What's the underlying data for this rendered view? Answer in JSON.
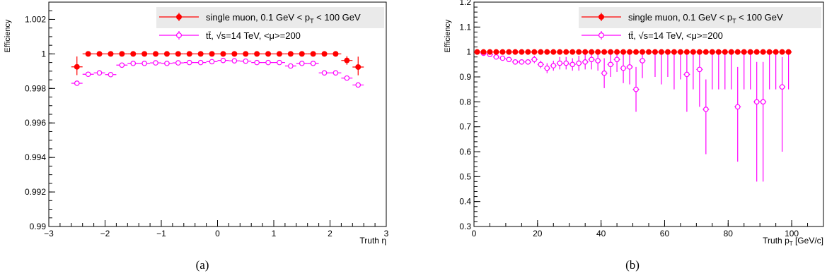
{
  "chart_data": [
    {
      "type": "scatter",
      "caption": "(a)",
      "xlabel": "Truth η",
      "ylabel": "Efficiency",
      "xlim": [
        -3,
        3
      ],
      "ylim": [
        0.99,
        1.003
      ],
      "xticks": [
        "−3",
        "−2",
        "−1",
        "0",
        "1",
        "2",
        "3"
      ],
      "yticks": [
        "0.99",
        "0.992",
        "0.994",
        "0.996",
        "0.998",
        "1",
        "1.002"
      ],
      "legend": {
        "placement": "top-right",
        "entries": [
          {
            "text": "single muon, 0.1 GeV < p",
            "sub": "T",
            "tail": " < 100 GeV",
            "color": "#ff0000",
            "marker": "filled-circle"
          },
          {
            "text": "tt̄, √s=14 TeV, <μ>=200",
            "color": "#ff00ff",
            "marker": "open-circle"
          }
        ]
      },
      "series": [
        {
          "name": "single muon, 0.1 GeV < pT < 100 GeV",
          "color": "#ff0000",
          "x": [
            -2.5,
            -2.3,
            -2.1,
            -1.9,
            -1.7,
            -1.5,
            -1.3,
            -1.1,
            -0.9,
            -0.7,
            -0.5,
            -0.3,
            -0.1,
            0.1,
            0.3,
            0.5,
            0.7,
            0.9,
            1.1,
            1.3,
            1.5,
            1.7,
            1.9,
            2.1,
            2.3,
            2.5
          ],
          "xerr": 0.1,
          "y": [
            0.99925,
            1,
            1,
            1,
            1,
            1,
            1,
            1,
            1,
            1,
            1,
            1,
            1,
            1,
            1,
            1,
            1,
            1,
            1,
            1,
            1,
            1,
            1,
            1,
            0.99962,
            0.99924
          ],
          "yerr_lo": [
            0.00048,
            5e-05,
            5e-05,
            5e-05,
            5e-05,
            5e-05,
            5e-05,
            5e-05,
            5e-05,
            5e-05,
            5e-05,
            5e-05,
            5e-05,
            5e-05,
            5e-05,
            5e-05,
            5e-05,
            5e-05,
            5e-05,
            5e-05,
            5e-05,
            5e-05,
            5e-05,
            5e-05,
            0.00025,
            0.00048
          ],
          "yerr_hi": [
            0.0006,
            0,
            0,
            0,
            0,
            0,
            0,
            0,
            0,
            0,
            0,
            0,
            0,
            0,
            0,
            0,
            0,
            0,
            0,
            0,
            0,
            0,
            0,
            0,
            0.00025,
            0.0006
          ]
        },
        {
          "name": "tt̄, √s=14 TeV, <μ>=200",
          "color": "#ff00ff",
          "x": [
            -2.5,
            -2.3,
            -2.1,
            -1.9,
            -1.7,
            -1.5,
            -1.3,
            -1.1,
            -0.9,
            -0.7,
            -0.5,
            -0.3,
            -0.1,
            0.1,
            0.3,
            0.5,
            0.7,
            0.9,
            1.1,
            1.3,
            1.5,
            1.7,
            1.9,
            2.1,
            2.3,
            2.5
          ],
          "xerr": 0.1,
          "y": [
            0.9983,
            0.99882,
            0.9989,
            0.9988,
            0.99935,
            0.99945,
            0.99945,
            0.99948,
            0.99945,
            0.99948,
            0.9995,
            0.9995,
            0.99955,
            0.99962,
            0.9996,
            0.99958,
            0.9995,
            0.9995,
            0.9995,
            0.9993,
            0.99945,
            0.99945,
            0.9989,
            0.9989,
            0.9986,
            0.9982
          ],
          "yerr_lo": [
            0.00012,
            8e-05,
            8e-05,
            8e-05,
            8e-05,
            8e-05,
            8e-05,
            8e-05,
            8e-05,
            8e-05,
            8e-05,
            8e-05,
            8e-05,
            8e-05,
            8e-05,
            8e-05,
            8e-05,
            8e-05,
            8e-05,
            8e-05,
            8e-05,
            8e-05,
            8e-05,
            8e-05,
            8e-05,
            0.00012
          ],
          "yerr_hi": [
            0.00012,
            8e-05,
            8e-05,
            8e-05,
            8e-05,
            8e-05,
            8e-05,
            8e-05,
            8e-05,
            8e-05,
            8e-05,
            8e-05,
            8e-05,
            8e-05,
            8e-05,
            8e-05,
            8e-05,
            8e-05,
            8e-05,
            8e-05,
            8e-05,
            8e-05,
            8e-05,
            8e-05,
            8e-05,
            0.00012
          ]
        }
      ]
    },
    {
      "type": "scatter",
      "caption": "(b)",
      "xlabel": "Truth p",
      "xlabel_sub": "T",
      "xlabel_tail": " [GeV/c]",
      "ylabel": "Efficiency",
      "xlim": [
        0,
        110
      ],
      "ylim": [
        0.3,
        1.2
      ],
      "xticks": [
        "0",
        "20",
        "40",
        "60",
        "80",
        "100"
      ],
      "yticks": [
        "0.3",
        "0.4",
        "0.5",
        "0.6",
        "0.7",
        "0.8",
        "0.9",
        "1",
        "1.1",
        "1.2"
      ],
      "legend": {
        "placement": "top-right",
        "entries": [
          {
            "text": "single muon, 0.1 GeV < p",
            "sub": "T",
            "tail": " < 100 GeV",
            "color": "#ff0000",
            "marker": "filled-circle"
          },
          {
            "text": "tt̄, √s=14 TeV, <μ>=200",
            "color": "#ff00ff",
            "marker": "open-circle"
          }
        ]
      },
      "series": [
        {
          "name": "single muon, 0.1 GeV < pT < 100 GeV",
          "color": "#ff0000",
          "x": [
            1,
            3,
            5,
            7,
            9,
            11,
            13,
            15,
            17,
            19,
            21,
            23,
            25,
            27,
            29,
            31,
            33,
            35,
            37,
            39,
            41,
            43,
            45,
            47,
            49,
            51,
            53,
            55,
            57,
            59,
            61,
            63,
            65,
            67,
            69,
            71,
            73,
            75,
            77,
            79,
            81,
            83,
            85,
            87,
            89,
            91,
            93,
            95,
            97,
            99
          ],
          "xerr": 1,
          "y": [
            1,
            1,
            1,
            1,
            1,
            1,
            1,
            1,
            1,
            1,
            1,
            1,
            1,
            1,
            1,
            1,
            1,
            1,
            1,
            1,
            1,
            1,
            1,
            1,
            1,
            1,
            1,
            1,
            1,
            1,
            1,
            1,
            1,
            1,
            1,
            1,
            1,
            1,
            1,
            1,
            1,
            1,
            1,
            1,
            1,
            1,
            1,
            1,
            1,
            1
          ],
          "yerr_lo": [
            0.003,
            0.003,
            0.003,
            0.003,
            0.003,
            0.003,
            0.003,
            0.003,
            0.003,
            0.003,
            0.003,
            0.003,
            0.003,
            0.003,
            0.003,
            0.003,
            0.003,
            0.003,
            0.003,
            0.003,
            0.003,
            0.003,
            0.003,
            0.003,
            0.003,
            0.003,
            0.003,
            0.003,
            0.003,
            0.003,
            0.003,
            0.003,
            0.003,
            0.003,
            0.003,
            0.003,
            0.003,
            0.003,
            0.003,
            0.003,
            0.003,
            0.003,
            0.003,
            0.003,
            0.003,
            0.003,
            0.003,
            0.003,
            0.003,
            0.003
          ],
          "yerr_hi": [
            0,
            0,
            0,
            0,
            0,
            0,
            0,
            0,
            0,
            0,
            0,
            0,
            0,
            0,
            0,
            0,
            0,
            0,
            0,
            0,
            0,
            0,
            0,
            0,
            0,
            0,
            0,
            0,
            0,
            0,
            0,
            0,
            0,
            0,
            0,
            0,
            0,
            0,
            0,
            0,
            0,
            0,
            0,
            0,
            0,
            0,
            0,
            0,
            0,
            0
          ]
        },
        {
          "name": "tt̄, √s=14 TeV, <μ>=200",
          "color": "#ff00ff",
          "x": [
            3,
            5,
            7,
            9,
            11,
            13,
            15,
            17,
            19,
            21,
            23,
            25,
            27,
            29,
            31,
            33,
            35,
            37,
            39,
            41,
            43,
            45,
            47,
            49,
            51,
            53,
            57,
            59,
            61,
            63,
            65,
            67,
            69,
            71,
            73,
            75,
            77,
            79,
            81,
            83,
            85,
            87,
            89,
            91,
            93,
            95,
            97,
            99
          ],
          "xerr": 1,
          "y": [
            0.995,
            0.99,
            0.98,
            0.975,
            0.97,
            0.96,
            0.96,
            0.96,
            0.97,
            0.95,
            0.935,
            0.945,
            0.955,
            0.955,
            0.95,
            0.955,
            0.96,
            0.97,
            0.965,
            0.915,
            0.95,
            0.97,
            0.935,
            0.94,
            0.85,
            0.965,
            1,
            1,
            1,
            1,
            1,
            0.91,
            1,
            0.93,
            0.77,
            1,
            1,
            1,
            1,
            0.78,
            1,
            1,
            0.8,
            0.8,
            1,
            1,
            0.86,
            1
          ],
          "yerr_lo": [
            0.005,
            0.006,
            0.008,
            0.008,
            0.008,
            0.01,
            0.01,
            0.01,
            0.015,
            0.015,
            0.02,
            0.02,
            0.025,
            0.025,
            0.025,
            0.03,
            0.03,
            0.04,
            0.04,
            0.06,
            0.05,
            0.05,
            0.06,
            0.07,
            0.09,
            0.07,
            0.1,
            0.13,
            0.1,
            0.15,
            0.11,
            0.15,
            0.15,
            0.15,
            0.18,
            0.15,
            0.15,
            0.15,
            0.15,
            0.22,
            0.15,
            0.15,
            0.32,
            0.32,
            0.15,
            0.15,
            0.26,
            0.15
          ],
          "yerr_hi": [
            0.005,
            0.006,
            0.008,
            0.008,
            0.008,
            0.01,
            0.01,
            0.01,
            0.015,
            0.015,
            0.02,
            0.02,
            0.025,
            0.025,
            0.025,
            0.03,
            0.03,
            0.03,
            0.035,
            0.06,
            0.05,
            0.03,
            0.06,
            0.06,
            0.09,
            0.035,
            0,
            0,
            0,
            0,
            0,
            0.09,
            0,
            0.07,
            0.12,
            0,
            0,
            0,
            0,
            0.16,
            0,
            0,
            0.16,
            0.16,
            0,
            0,
            0.12,
            0
          ]
        }
      ]
    }
  ]
}
